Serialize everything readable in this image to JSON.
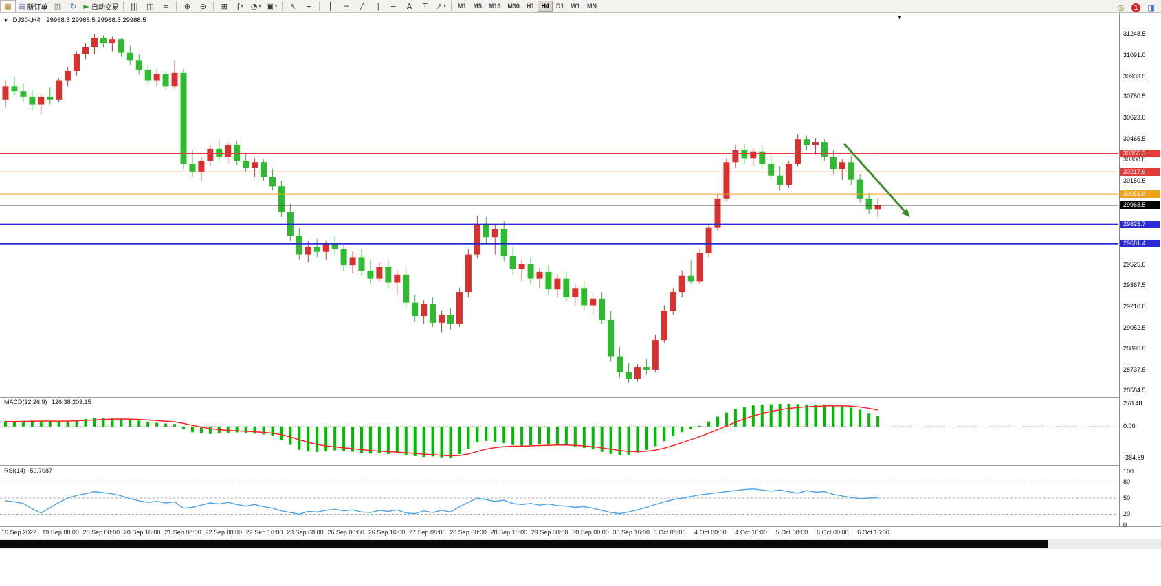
{
  "toolbar": {
    "groups": [
      {
        "items": [
          {
            "name": "new-chart-button",
            "icon": "chart-icon",
            "glyph": "▦",
            "glyph_color": "#b08a28"
          },
          {
            "name": "new-order-button",
            "icon": "new-order-icon",
            "glyph": "▤",
            "glyph_color": "#4a6fa5",
            "label": "新订单"
          },
          {
            "name": "chart-profiles-button",
            "icon": "profiles-icon",
            "glyph": "▥",
            "glyph_color": "#6a6a6a"
          },
          {
            "name": "refresh-button",
            "icon": "refresh-icon",
            "glyph": "↻",
            "glyph_color": "#3a6fd8"
          },
          {
            "name": "auto-trading-button",
            "icon": "play-icon",
            "glyph": "►",
            "glyph_color": "#2f9e2f",
            "label": "自动交易"
          }
        ]
      },
      {
        "items": [
          {
            "name": "ohlc-bars-button",
            "icon": "bars-chart-icon",
            "glyph": "|||"
          },
          {
            "name": "candlestick-button",
            "icon": "candlestick-icon",
            "glyph": "◫"
          },
          {
            "name": "line-chart-button",
            "icon": "line-chart-icon",
            "glyph": "≈"
          }
        ]
      },
      {
        "items": [
          {
            "name": "zoom-in-button",
            "icon": "zoom-in-icon",
            "glyph": "⊕"
          },
          {
            "name": "zoom-out-button",
            "icon": "zoom-out-icon",
            "glyph": "⊖"
          }
        ]
      },
      {
        "items": [
          {
            "name": "tile-windows-button",
            "icon": "tile-windows-icon",
            "glyph": "⊞"
          },
          {
            "name": "indicators-button",
            "icon": "indicators-icon",
            "glyph": "ƒ",
            "caret": true
          },
          {
            "name": "periods-button",
            "icon": "clock-icon",
            "glyph": "◔",
            "caret": true
          },
          {
            "name": "templates-button",
            "icon": "template-icon",
            "glyph": "▣",
            "caret": true
          }
        ]
      },
      {
        "items": [
          {
            "name": "cursor-button",
            "icon": "cursor-icon",
            "glyph": "↖"
          },
          {
            "name": "crosshair-button",
            "icon": "crosshair-icon",
            "glyph": "+"
          }
        ]
      },
      {
        "items": [
          {
            "name": "vertical-line-button",
            "icon": "vertical-line-icon",
            "glyph": "│"
          },
          {
            "name": "horizontal-line-button",
            "icon": "horizontal-line-icon",
            "glyph": "─"
          },
          {
            "name": "trendline-button",
            "icon": "trendline-icon",
            "glyph": "╱"
          },
          {
            "name": "channel-button",
            "icon": "channel-icon",
            "glyph": "∥"
          },
          {
            "name": "fibonacci-button",
            "icon": "fibonacci-icon",
            "glyph": "≡"
          },
          {
            "name": "text-button",
            "icon": "text-icon",
            "glyph": "A"
          },
          {
            "name": "label-button",
            "icon": "label-icon",
            "glyph": "T"
          },
          {
            "name": "arrows-button",
            "icon": "arrow-icon",
            "glyph": "↗",
            "caret": true
          }
        ]
      }
    ],
    "timeframes": {
      "items": [
        "M1",
        "M5",
        "M15",
        "M30",
        "H1",
        "H4",
        "D1",
        "W1",
        "MN"
      ],
      "active": "H4"
    },
    "right_items": [
      {
        "name": "quick-search-button",
        "icon": "search-icon",
        "glyph": "◎",
        "glyph_color": "#8a8a2a"
      },
      {
        "name": "notifications-badge",
        "icon": "notification-badge-icon",
        "count": "1"
      },
      {
        "name": "community-button",
        "icon": "community-icon",
        "glyph": "◨",
        "glyph_color": "#3a6fd8"
      }
    ]
  },
  "chart": {
    "symbol_label": "DJ30-,H4",
    "ohlc_text": "29968.5 29968.5 29968.5 29968.5"
  },
  "chart_data": {
    "type": "candlestick",
    "title": "DJ30-,H4",
    "ylim": [
      28560,
      31360
    ],
    "bull_color": "#d93030",
    "bear_color": "#2fbb2f",
    "candles": [
      [
        30760,
        30900,
        30700,
        30860
      ],
      [
        30860,
        30930,
        30790,
        30820
      ],
      [
        30820,
        30880,
        30740,
        30780
      ],
      [
        30780,
        30830,
        30680,
        30720
      ],
      [
        30720,
        30800,
        30650,
        30780
      ],
      [
        30780,
        30850,
        30720,
        30760
      ],
      [
        30760,
        30920,
        30740,
        30900
      ],
      [
        30900,
        31000,
        30860,
        30970
      ],
      [
        30970,
        31120,
        30940,
        31100
      ],
      [
        31100,
        31180,
        31060,
        31150
      ],
      [
        31150,
        31248,
        31100,
        31220
      ],
      [
        31220,
        31240,
        31150,
        31180
      ],
      [
        31180,
        31230,
        31120,
        31210
      ],
      [
        31210,
        31220,
        31080,
        31110
      ],
      [
        31110,
        31160,
        31020,
        31050
      ],
      [
        31050,
        31100,
        30950,
        30980
      ],
      [
        30980,
        31020,
        30870,
        30900
      ],
      [
        30900,
        30990,
        30860,
        30950
      ],
      [
        30950,
        30970,
        30830,
        30860
      ],
      [
        30860,
        31050,
        30840,
        30960
      ],
      [
        30960,
        30990,
        30240,
        30280
      ],
      [
        30280,
        30380,
        30180,
        30220
      ],
      [
        30220,
        30330,
        30150,
        30300
      ],
      [
        30300,
        30420,
        30260,
        30390
      ],
      [
        30390,
        30460,
        30300,
        30330
      ],
      [
        30330,
        30440,
        30280,
        30420
      ],
      [
        30420,
        30450,
        30270,
        30300
      ],
      [
        30300,
        30360,
        30220,
        30250
      ],
      [
        30250,
        30320,
        30180,
        30290
      ],
      [
        30290,
        30310,
        30150,
        30180
      ],
      [
        30180,
        30240,
        30080,
        30110
      ],
      [
        30110,
        30150,
        29880,
        29920
      ],
      [
        29920,
        29980,
        29700,
        29740
      ],
      [
        29740,
        29800,
        29560,
        29600
      ],
      [
        29600,
        29700,
        29540,
        29660
      ],
      [
        29660,
        29720,
        29580,
        29620
      ],
      [
        29620,
        29700,
        29560,
        29680
      ],
      [
        29680,
        29740,
        29600,
        29640
      ],
      [
        29640,
        29680,
        29480,
        29520
      ],
      [
        29520,
        29620,
        29460,
        29580
      ],
      [
        29580,
        29640,
        29440,
        29480
      ],
      [
        29480,
        29560,
        29380,
        29420
      ],
      [
        29420,
        29540,
        29400,
        29510
      ],
      [
        29510,
        29560,
        29350,
        29390
      ],
      [
        29390,
        29480,
        29300,
        29450
      ],
      [
        29450,
        29500,
        29200,
        29240
      ],
      [
        29240,
        29300,
        29100,
        29140
      ],
      [
        29140,
        29260,
        29080,
        29230
      ],
      [
        29230,
        29280,
        29060,
        29090
      ],
      [
        29090,
        29180,
        29020,
        29150
      ],
      [
        29150,
        29200,
        29040,
        29080
      ],
      [
        29080,
        29350,
        29060,
        29320
      ],
      [
        29320,
        29640,
        29280,
        29600
      ],
      [
        29600,
        29890,
        29570,
        29830
      ],
      [
        29830,
        29880,
        29680,
        29730
      ],
      [
        29730,
        29820,
        29600,
        29790
      ],
      [
        29790,
        29850,
        29550,
        29590
      ],
      [
        29590,
        29660,
        29450,
        29490
      ],
      [
        29490,
        29560,
        29400,
        29530
      ],
      [
        29530,
        29580,
        29380,
        29420
      ],
      [
        29420,
        29500,
        29350,
        29470
      ],
      [
        29470,
        29520,
        29300,
        29340
      ],
      [
        29340,
        29450,
        29280,
        29420
      ],
      [
        29420,
        29470,
        29250,
        29280
      ],
      [
        29280,
        29380,
        29220,
        29350
      ],
      [
        29350,
        29400,
        29180,
        29220
      ],
      [
        29220,
        29300,
        29150,
        29270
      ],
      [
        29270,
        29320,
        29080,
        29110
      ],
      [
        29110,
        29180,
        28800,
        28840
      ],
      [
        28840,
        28910,
        28680,
        28720
      ],
      [
        28720,
        28790,
        28640,
        28670
      ],
      [
        28670,
        28780,
        28650,
        28760
      ],
      [
        28760,
        28820,
        28700,
        28740
      ],
      [
        28740,
        29000,
        28720,
        28960
      ],
      [
        28960,
        29220,
        28940,
        29180
      ],
      [
        29180,
        29350,
        29150,
        29320
      ],
      [
        29320,
        29480,
        29280,
        29440
      ],
      [
        29440,
        29560,
        29380,
        29400
      ],
      [
        29400,
        29640,
        29380,
        29610
      ],
      [
        29610,
        29830,
        29580,
        29800
      ],
      [
        29800,
        30050,
        29780,
        30020
      ],
      [
        30020,
        30320,
        30000,
        30290
      ],
      [
        30290,
        30420,
        30250,
        30380
      ],
      [
        30380,
        30430,
        30280,
        30320
      ],
      [
        30320,
        30400,
        30260,
        30370
      ],
      [
        30370,
        30420,
        30240,
        30280
      ],
      [
        30280,
        30340,
        30150,
        30190
      ],
      [
        30190,
        30260,
        30080,
        30120
      ],
      [
        30120,
        30300,
        30100,
        30280
      ],
      [
        30280,
        30500,
        30260,
        30460
      ],
      [
        30460,
        30490,
        30380,
        30420
      ],
      [
        30420,
        30470,
        30350,
        30440
      ],
      [
        30440,
        30460,
        30300,
        30330
      ],
      [
        30330,
        30380,
        30200,
        30240
      ],
      [
        30240,
        30310,
        30160,
        30290
      ],
      [
        30290,
        30340,
        30120,
        30160
      ],
      [
        30160,
        30200,
        29990,
        30020
      ],
      [
        30020,
        30060,
        29900,
        29940
      ],
      [
        29940,
        30020,
        29880,
        29968.5
      ]
    ],
    "hlines": [
      {
        "price": 30355.3,
        "label": "30355.3",
        "color": "#e23b3b",
        "badge_bg": "#e23b3b",
        "width": 1
      },
      {
        "price": 30217.6,
        "label": "30217.6",
        "color": "#e23b3b",
        "badge_bg": "#e23b3b",
        "width": 1
      },
      {
        "price": 30051.6,
        "label": "30051.6",
        "color": "#efa21b",
        "badge_bg": "#efa21b",
        "width": 2
      },
      {
        "price": 29968.5,
        "label": "29968.5",
        "color": "#1a1a1a",
        "badge_bg": "#000000",
        "width": 1
      },
      {
        "price": 29825.7,
        "label": "29825.7",
        "color": "#2b2bd5",
        "badge_bg": "#2b2bd5",
        "width": 2
      },
      {
        "price": 29681.4,
        "label": "29681.4",
        "color": "#2b2bd5",
        "badge_bg": "#2b2bd5",
        "width": 2
      }
    ],
    "current_price": 29968.5,
    "trend_arrow": {
      "from": {
        "bar": 94.2,
        "price": 30430
      },
      "to": {
        "bar": 101.6,
        "price": 29880
      },
      "color": "#3e8e2e"
    },
    "price_ticks": [
      {
        "value": 31248.5,
        "text": "31248.5"
      },
      {
        "value": 31091.0,
        "text": "31091.0"
      },
      {
        "value": 30933.5,
        "text": "30933.5"
      },
      {
        "value": 30780.5,
        "text": "30780.5"
      },
      {
        "value": 30623.0,
        "text": "30623.0"
      },
      {
        "value": 30465.5,
        "text": "30465.5"
      },
      {
        "value": 30308.0,
        "text": "30308.0"
      },
      {
        "value": 30150.5,
        "text": "30150.5"
      },
      {
        "value": 29525.0,
        "text": "29525.0"
      },
      {
        "value": 29367.5,
        "text": "29367.5"
      },
      {
        "value": 29210.0,
        "text": "29210.0"
      },
      {
        "value": 29052.5,
        "text": "29052.5"
      },
      {
        "value": 28895.0,
        "text": "28895.0"
      },
      {
        "value": 28737.5,
        "text": "28737.5"
      },
      {
        "value": 28584.5,
        "text": "28584.5"
      }
    ],
    "x_labels": [
      "16 Sep 2022",
      "19 Sep 08:00",
      "20 Sep 00:00",
      "20 Sep 16:00",
      "21 Sep 08:00",
      "22 Sep 00:00",
      "22 Sep 16:00",
      "23 Sep 08:00",
      "26 Sep 00:00",
      "26 Sep 16:00",
      "27 Sep 08:00",
      "28 Sep 00:00",
      "28 Sep 16:00",
      "29 Sep 08:00",
      "30 Sep 00:00",
      "30 Sep 16:00",
      "3 Oct 08:00",
      "4 Oct 00:00",
      "4 Oct 16:00",
      "5 Oct 08:00",
      "6 Oct 00:00",
      "6 Oct 16:00"
    ],
    "macd": {
      "label": "MACD(12,26,9)",
      "values_label": "126.38 203.15",
      "color": "#00bb00",
      "signal_color": "#ff2222",
      "ylim": [
        -430,
        310
      ],
      "axis_labels": [
        {
          "value": 278.48,
          "text": "278.48"
        },
        {
          "value": 0,
          "text": "0.00"
        },
        {
          "value": -384.89,
          "text": "-384.89"
        }
      ],
      "histogram": [
        60,
        64,
        68,
        72,
        70,
        66,
        62,
        70,
        80,
        92,
        102,
        108,
        104,
        96,
        86,
        72,
        58,
        46,
        36,
        30,
        -30,
        -70,
        -85,
        -92,
        -86,
        -78,
        -72,
        -78,
        -88,
        -98,
        -115,
        -165,
        -225,
        -285,
        -305,
        -312,
        -302,
        -292,
        -298,
        -308,
        -322,
        -332,
        -326,
        -336,
        -330,
        -346,
        -362,
        -372,
        -366,
        -378,
        -385,
        -336,
        -272,
        -196,
        -176,
        -188,
        -204,
        -226,
        -234,
        -228,
        -218,
        -222,
        -212,
        -226,
        -244,
        -262,
        -280,
        -310,
        -336,
        -352,
        -344,
        -318,
        -286,
        -240,
        -180,
        -120,
        -70,
        -30,
        10,
        60,
        120,
        170,
        210,
        240,
        258,
        266,
        272,
        276,
        278,
        274,
        270,
        266,
        270,
        262,
        250,
        230,
        205,
        165,
        126.38
      ]
    },
    "rsi": {
      "label": "RSI(14)",
      "value_label": "50.7087",
      "color": "#4da3e8",
      "ylim": [
        0,
        100
      ],
      "levels": [
        80,
        50,
        20
      ],
      "axis_labels": [
        {
          "value": 100,
          "text": "100"
        },
        {
          "value": 80,
          "text": "80"
        },
        {
          "value": 50,
          "text": "50"
        },
        {
          "value": 20,
          "text": "20"
        },
        {
          "value": 0,
          "text": "0"
        }
      ],
      "values": [
        45,
        43,
        40,
        30,
        22,
        32,
        42,
        50,
        55,
        58,
        62,
        60,
        58,
        54,
        49,
        45,
        42,
        44,
        41,
        43,
        31,
        33,
        37,
        41,
        39,
        42,
        38,
        35,
        38,
        34,
        31,
        26,
        23,
        20,
        25,
        24,
        27,
        29,
        26,
        28,
        24,
        23,
        27,
        25,
        28,
        22,
        21,
        26,
        23,
        27,
        24,
        34,
        42,
        50,
        47,
        44,
        46,
        40,
        38,
        40,
        37,
        39,
        36,
        35,
        33,
        34,
        31,
        27,
        23,
        21,
        24,
        28,
        33,
        38,
        43,
        47,
        50,
        53,
        56,
        58,
        60,
        62,
        64,
        66,
        67,
        65,
        63,
        65,
        62,
        59,
        64,
        61,
        62,
        57,
        54,
        51,
        49,
        50,
        50.71
      ]
    }
  }
}
